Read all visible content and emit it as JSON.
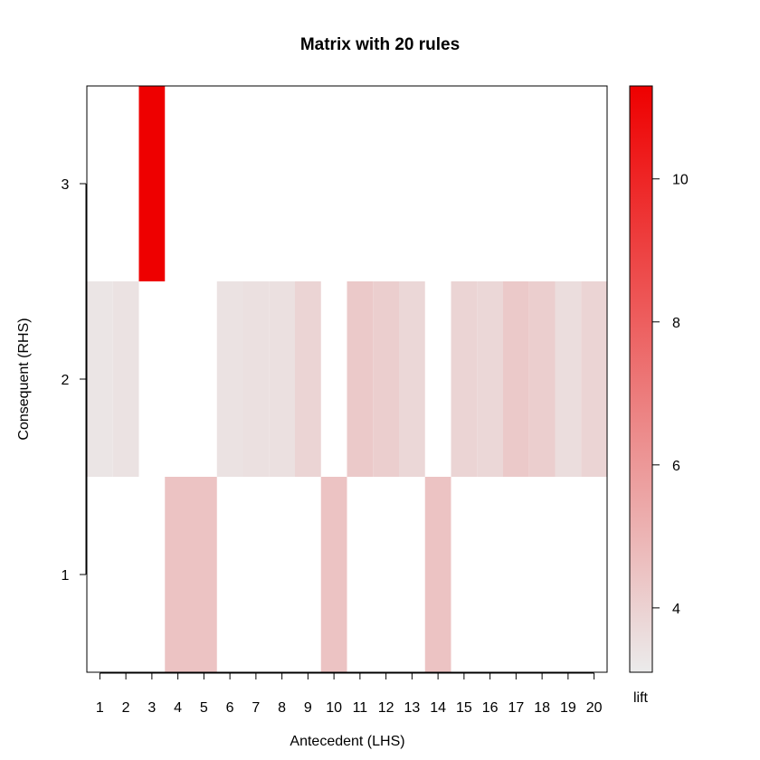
{
  "chart_data": {
    "type": "heatmap",
    "title": "Matrix with 20 rules",
    "xlabel": "Antecedent (LHS)",
    "ylabel": "Consequent (RHS)",
    "x_categories": [
      "1",
      "2",
      "3",
      "4",
      "5",
      "6",
      "7",
      "8",
      "9",
      "10",
      "11",
      "12",
      "13",
      "14",
      "15",
      "16",
      "17",
      "18",
      "19",
      "20"
    ],
    "y_categories": [
      "1",
      "2",
      "3"
    ],
    "xlim": [
      0.5,
      20.5
    ],
    "ylim": [
      0.5,
      3.5
    ],
    "cells": [
      {
        "x": 1,
        "y": 2,
        "lift": 3.3
      },
      {
        "x": 2,
        "y": 2,
        "lift": 3.4
      },
      {
        "x": 3,
        "y": 3,
        "lift": 11.3
      },
      {
        "x": 4,
        "y": 1,
        "lift": 4.5
      },
      {
        "x": 5,
        "y": 1,
        "lift": 4.5
      },
      {
        "x": 6,
        "y": 2,
        "lift": 3.4
      },
      {
        "x": 7,
        "y": 2,
        "lift": 3.5
      },
      {
        "x": 8,
        "y": 2,
        "lift": 3.5
      },
      {
        "x": 9,
        "y": 2,
        "lift": 3.9
      },
      {
        "x": 10,
        "y": 1,
        "lift": 4.5
      },
      {
        "x": 11,
        "y": 2,
        "lift": 4.3
      },
      {
        "x": 12,
        "y": 2,
        "lift": 4.1
      },
      {
        "x": 13,
        "y": 2,
        "lift": 3.8
      },
      {
        "x": 14,
        "y": 1,
        "lift": 4.5
      },
      {
        "x": 15,
        "y": 2,
        "lift": 3.9
      },
      {
        "x": 16,
        "y": 2,
        "lift": 3.8
      },
      {
        "x": 17,
        "y": 2,
        "lift": 4.3
      },
      {
        "x": 18,
        "y": 2,
        "lift": 4.1
      },
      {
        "x": 19,
        "y": 2,
        "lift": 3.6
      },
      {
        "x": 20,
        "y": 2,
        "lift": 3.9
      }
    ],
    "colorbar": {
      "label": "lift",
      "range": [
        3.1,
        11.3
      ],
      "ticks": [
        4,
        6,
        8,
        10
      ],
      "color_low": "#ebebeb",
      "color_high": "#ee0000"
    },
    "grid": false,
    "legend_position": "right"
  }
}
